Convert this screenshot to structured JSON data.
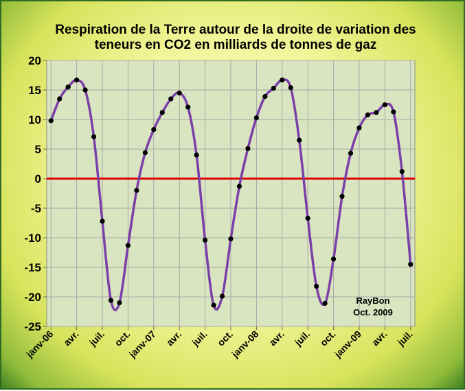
{
  "chart_data": {
    "type": "line",
    "title_lines": [
      "Respiration de la Terre autour de la droite de variation des",
      "teneurs en CO2 en milliards de tonnes de gaz"
    ],
    "ylim": [
      -25,
      20
    ],
    "y_ticks": [
      "20",
      "15",
      "10",
      "5",
      "0",
      "-5",
      "-10",
      "-15",
      "-20",
      "-25"
    ],
    "y_tick_values": [
      20,
      15,
      10,
      5,
      0,
      -5,
      -10,
      -15,
      -20,
      -25
    ],
    "x_tick_labels": [
      {
        "label": "janv-06",
        "index": 0
      },
      {
        "label": "avr.",
        "index": 3
      },
      {
        "label": "juil.",
        "index": 6
      },
      {
        "label": "oct.",
        "index": 9
      },
      {
        "label": "janv-07",
        "index": 12
      },
      {
        "label": "avr.",
        "index": 15
      },
      {
        "label": "juil.",
        "index": 18
      },
      {
        "label": "oct.",
        "index": 21
      },
      {
        "label": "janv-08",
        "index": 24
      },
      {
        "label": "avr.",
        "index": 27
      },
      {
        "label": "juil.",
        "index": 30
      },
      {
        "label": "oct.",
        "index": 33
      },
      {
        "label": "janv-09",
        "index": 36
      },
      {
        "label": "avr.",
        "index": 39
      },
      {
        "label": "juil.",
        "index": 42
      }
    ],
    "x_start": "2006-01",
    "x_end": "2009-07",
    "series": [
      {
        "values": [
          9.8,
          13.5,
          15.5,
          16.7,
          15.0,
          7.1,
          -7.2,
          -20.6,
          -21.0,
          -11.3,
          -2.0,
          4.4,
          8.3,
          11.2,
          13.5,
          14.5,
          12.1,
          4.0,
          -10.4,
          -21.4,
          -19.9,
          -10.2,
          -1.3,
          5.1,
          10.3,
          13.9,
          15.3,
          16.7,
          15.4,
          6.5,
          -6.7,
          -18.2,
          -21.1,
          -13.6,
          -3.0,
          4.3,
          8.6,
          10.8,
          11.2,
          12.5,
          11.3,
          1.2,
          -14.5
        ],
        "color": "#7a3fa8"
      }
    ],
    "reference_line": {
      "value": 0,
      "color": "#e00000"
    },
    "grid": true,
    "plot_background": "#d9e5c0",
    "grid_color": "#a8a8a8",
    "marker_color": "#000000",
    "signature": [
      "RayBon",
      "Oct. 2009"
    ]
  }
}
